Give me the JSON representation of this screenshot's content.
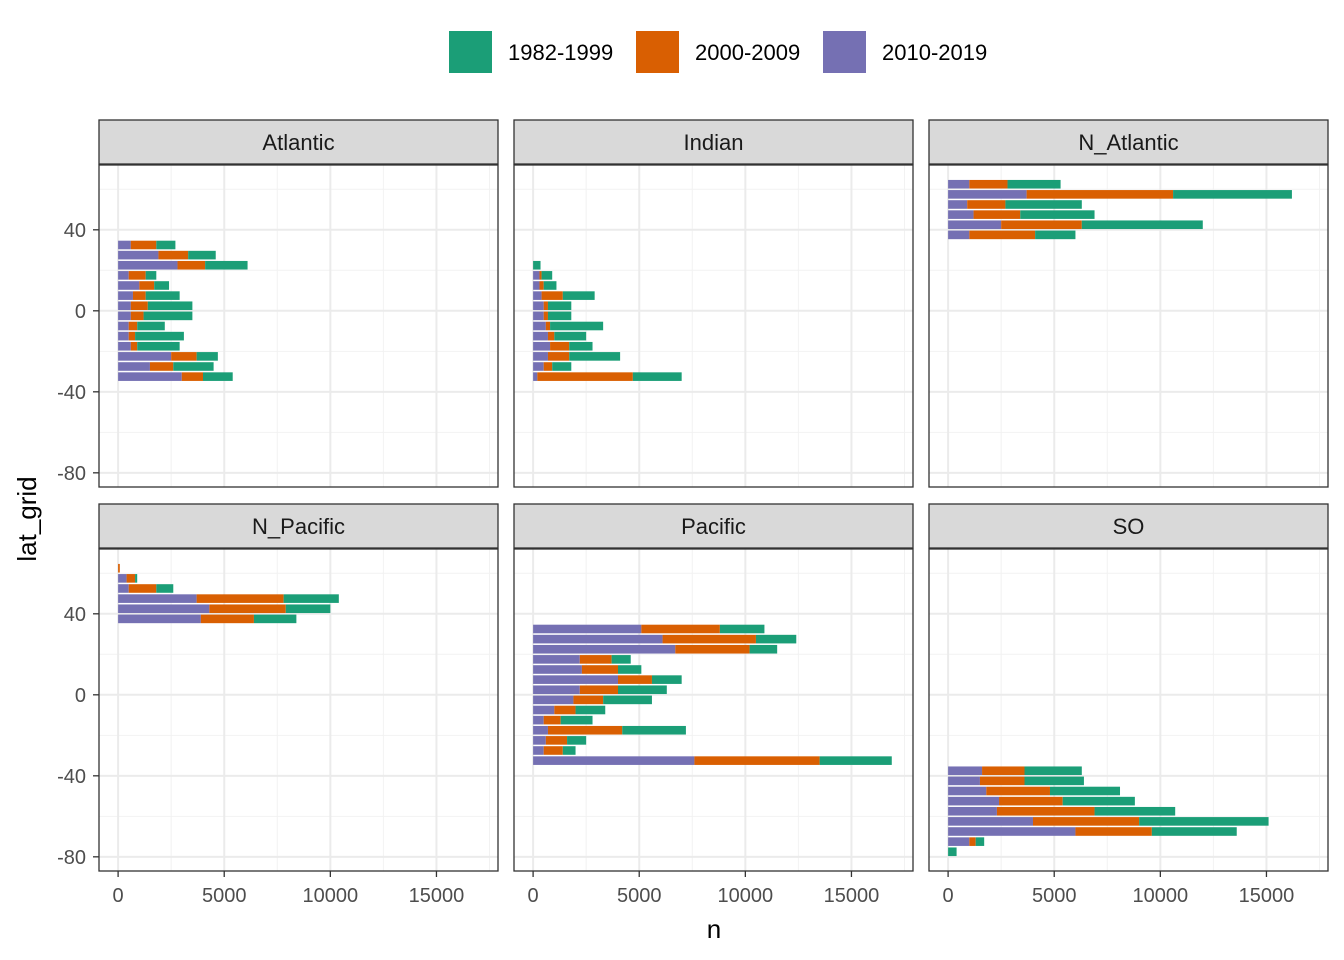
{
  "chart_data": {
    "type": "bar",
    "orientation": "horizontal",
    "stacked": true,
    "facet_layout": "3 columns x 2 rows",
    "xlabel": "n",
    "ylabel": "lat_grid",
    "xlim": [
      -900,
      17900
    ],
    "ylim": [
      -87,
      72
    ],
    "x_ticks": [
      0,
      5000,
      10000,
      15000
    ],
    "x_tick_labels": [
      "0",
      "5000",
      "10000",
      "15000"
    ],
    "y_ticks": [
      -80,
      -40,
      0,
      40
    ],
    "y_tick_labels": [
      "-80",
      "-40",
      "0",
      "40"
    ],
    "grid": true,
    "legend_position": "top",
    "series": [
      {
        "name": "1982-1999",
        "color": "#1B9E77"
      },
      {
        "name": "2000-2009",
        "color": "#D95F02"
      },
      {
        "name": "2010-2019",
        "color": "#7570B3"
      }
    ],
    "stack_order_from_zero": [
      "2010-2019",
      "2000-2009",
      "1982-1999"
    ],
    "facets": [
      {
        "name": "Atlantic",
        "lat": [
          32.5,
          27.5,
          22.5,
          17.5,
          12.5,
          7.5,
          2.5,
          -2.5,
          -7.5,
          -12.5,
          -17.5,
          -22.5,
          -27.5,
          -32.5
        ],
        "values": {
          "2010-2019": [
            600,
            1900,
            2800,
            500,
            1000,
            700,
            600,
            600,
            500,
            500,
            600,
            2500,
            1500,
            3000
          ],
          "2000-2009": [
            1200,
            1400,
            1300,
            800,
            700,
            600,
            800,
            600,
            400,
            300,
            300,
            1200,
            1100,
            1000
          ],
          "1982-1999": [
            900,
            1300,
            2000,
            500,
            700,
            1600,
            2100,
            2300,
            1300,
            2300,
            2000,
            1000,
            1900,
            1400
          ]
        }
      },
      {
        "name": "Indian",
        "lat": [
          22.5,
          17.5,
          12.5,
          7.5,
          2.5,
          -2.5,
          -7.5,
          -12.5,
          -17.5,
          -22.5,
          -27.5,
          -32.5
        ],
        "values": {
          "2010-2019": [
            0,
            300,
            300,
            400,
            500,
            500,
            600,
            700,
            800,
            700,
            500,
            200
          ],
          "2000-2009": [
            0,
            100,
            200,
            1000,
            200,
            200,
            200,
            300,
            900,
            1000,
            400,
            4500
          ],
          "1982-1999": [
            350,
            500,
            600,
            1500,
            1100,
            1100,
            2500,
            1500,
            1100,
            2400,
            900,
            2300
          ]
        }
      },
      {
        "name": "N_Atlantic",
        "lat": [
          62.5,
          57.5,
          52.5,
          47.5,
          42.5,
          37.5
        ],
        "values": {
          "2010-2019": [
            1000,
            3700,
            900,
            1200,
            2500,
            1000
          ],
          "2000-2009": [
            1800,
            6900,
            1800,
            2200,
            3800,
            3100
          ],
          "1982-1999": [
            2500,
            5600,
            3600,
            3500,
            5700,
            1900
          ]
        }
      },
      {
        "name": "N_Pacific",
        "lat": [
          62.5,
          57.5,
          52.5,
          47.5,
          42.5,
          37.5
        ],
        "values": {
          "2010-2019": [
            0,
            400,
            500,
            3700,
            4300,
            3900
          ],
          "2000-2009": [
            80,
            400,
            1300,
            4100,
            3600,
            2500
          ],
          "1982-1999": [
            0,
            100,
            800,
            2600,
            2100,
            2000
          ]
        }
      },
      {
        "name": "Pacific",
        "lat": [
          32.5,
          27.5,
          22.5,
          17.5,
          12.5,
          7.5,
          2.5,
          -2.5,
          -7.5,
          -12.5,
          -17.5,
          -22.5,
          -27.5,
          -32.5
        ],
        "values": {
          "2010-2019": [
            5100,
            6100,
            6700,
            2200,
            2300,
            4000,
            2200,
            1900,
            1000,
            500,
            700,
            600,
            500,
            7600
          ],
          "2000-2009": [
            3700,
            4400,
            3500,
            1500,
            1700,
            1600,
            1800,
            1400,
            1000,
            800,
            3500,
            1000,
            900,
            5900
          ],
          "1982-1999": [
            2100,
            1900,
            1300,
            900,
            1100,
            1400,
            2300,
            2300,
            1400,
            1500,
            3000,
            900,
            600,
            3400
          ]
        }
      },
      {
        "name": "SO",
        "lat": [
          -37.5,
          -42.5,
          -47.5,
          -52.5,
          -57.5,
          -62.5,
          -67.5,
          -72.5,
          -77.5
        ],
        "values": {
          "2010-2019": [
            1600,
            1500,
            1800,
            2400,
            2300,
            4000,
            6000,
            1000,
            0
          ],
          "2000-2009": [
            2000,
            2100,
            3000,
            3000,
            4600,
            5000,
            3600,
            300,
            0
          ],
          "1982-1999": [
            2700,
            2800,
            3300,
            3400,
            3800,
            6100,
            4000,
            400,
            400
          ]
        }
      }
    ]
  }
}
